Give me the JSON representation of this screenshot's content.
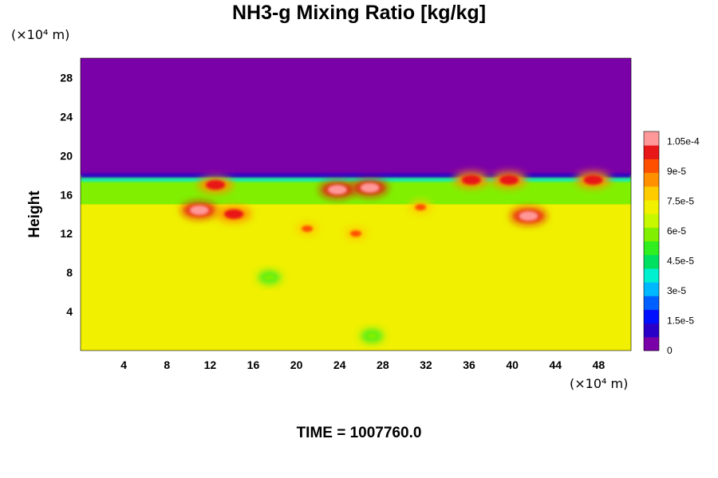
{
  "chart_data": {
    "type": "heatmap",
    "title": "NH3-g Mixing Ratio [kg/kg]",
    "xlabel": "",
    "ylabel": "Height",
    "x_unit_label": "(×10⁴ m)",
    "y_unit_label": "(×10⁴ m)",
    "footer": "TIME = 1007760.0",
    "xlim": [
      0,
      51
    ],
    "ylim": [
      0,
      30
    ],
    "x_ticks": [
      "4",
      "8",
      "12",
      "16",
      "20",
      "24",
      "28",
      "32",
      "36",
      "40",
      "44",
      "48"
    ],
    "x_tick_values": [
      4,
      8,
      12,
      16,
      20,
      24,
      28,
      32,
      36,
      40,
      44,
      48
    ],
    "y_ticks": [
      "4",
      "8",
      "12",
      "16",
      "20",
      "24",
      "28"
    ],
    "y_tick_values": [
      4,
      8,
      12,
      16,
      20,
      24,
      28
    ],
    "colorbar": {
      "min": 0,
      "max": 0.00011,
      "tick_labels": [
        "0",
        "1.5e-5",
        "3e-5",
        "4.5e-5",
        "6e-5",
        "7.5e-5",
        "9e-5",
        "1.05e-4"
      ],
      "tick_values": [
        0,
        1.5e-05,
        3e-05,
        4.5e-05,
        6e-05,
        7.5e-05,
        9e-05,
        0.000105
      ],
      "colors": [
        "#7a00a8",
        "#2a00c8",
        "#0010ff",
        "#0060ff",
        "#00b8ff",
        "#00f0d0",
        "#00e060",
        "#30ee20",
        "#80f000",
        "#c8f800",
        "#f0f000",
        "#ffcc00",
        "#ff9000",
        "#ff5000",
        "#e81818",
        "#ff9898"
      ]
    },
    "regions": {
      "upper_layer": {
        "y_range": [
          18,
          30
        ],
        "value": 0
      },
      "lower_layer": {
        "y_range": [
          0,
          15
        ],
        "value": 7.5e-05
      },
      "transition_layer": {
        "y_range": [
          15,
          18
        ],
        "value": 5.5e-05
      }
    },
    "features": [
      {
        "x": 11,
        "y": 14.4,
        "value": 0.00011
      },
      {
        "x": 14.2,
        "y": 14.0,
        "value": 0.0001
      },
      {
        "x": 12.5,
        "y": 17.0,
        "value": 0.0001
      },
      {
        "x": 21.0,
        "y": 12.5,
        "value": 9e-05
      },
      {
        "x": 23.8,
        "y": 16.5,
        "value": 0.00011
      },
      {
        "x": 26.8,
        "y": 16.7,
        "value": 0.00011
      },
      {
        "x": 25.5,
        "y": 12.0,
        "value": 9e-05
      },
      {
        "x": 31.5,
        "y": 14.7,
        "value": 9e-05
      },
      {
        "x": 36.2,
        "y": 17.5,
        "value": 0.0001
      },
      {
        "x": 41.5,
        "y": 13.8,
        "value": 0.00011
      },
      {
        "x": 39.7,
        "y": 17.5,
        "value": 0.0001
      },
      {
        "x": 47.5,
        "y": 17.5,
        "value": 0.0001
      },
      {
        "x": 17.5,
        "y": 7.5,
        "value": 6e-05
      },
      {
        "x": 27.0,
        "y": 1.5,
        "value": 6e-05
      }
    ]
  }
}
